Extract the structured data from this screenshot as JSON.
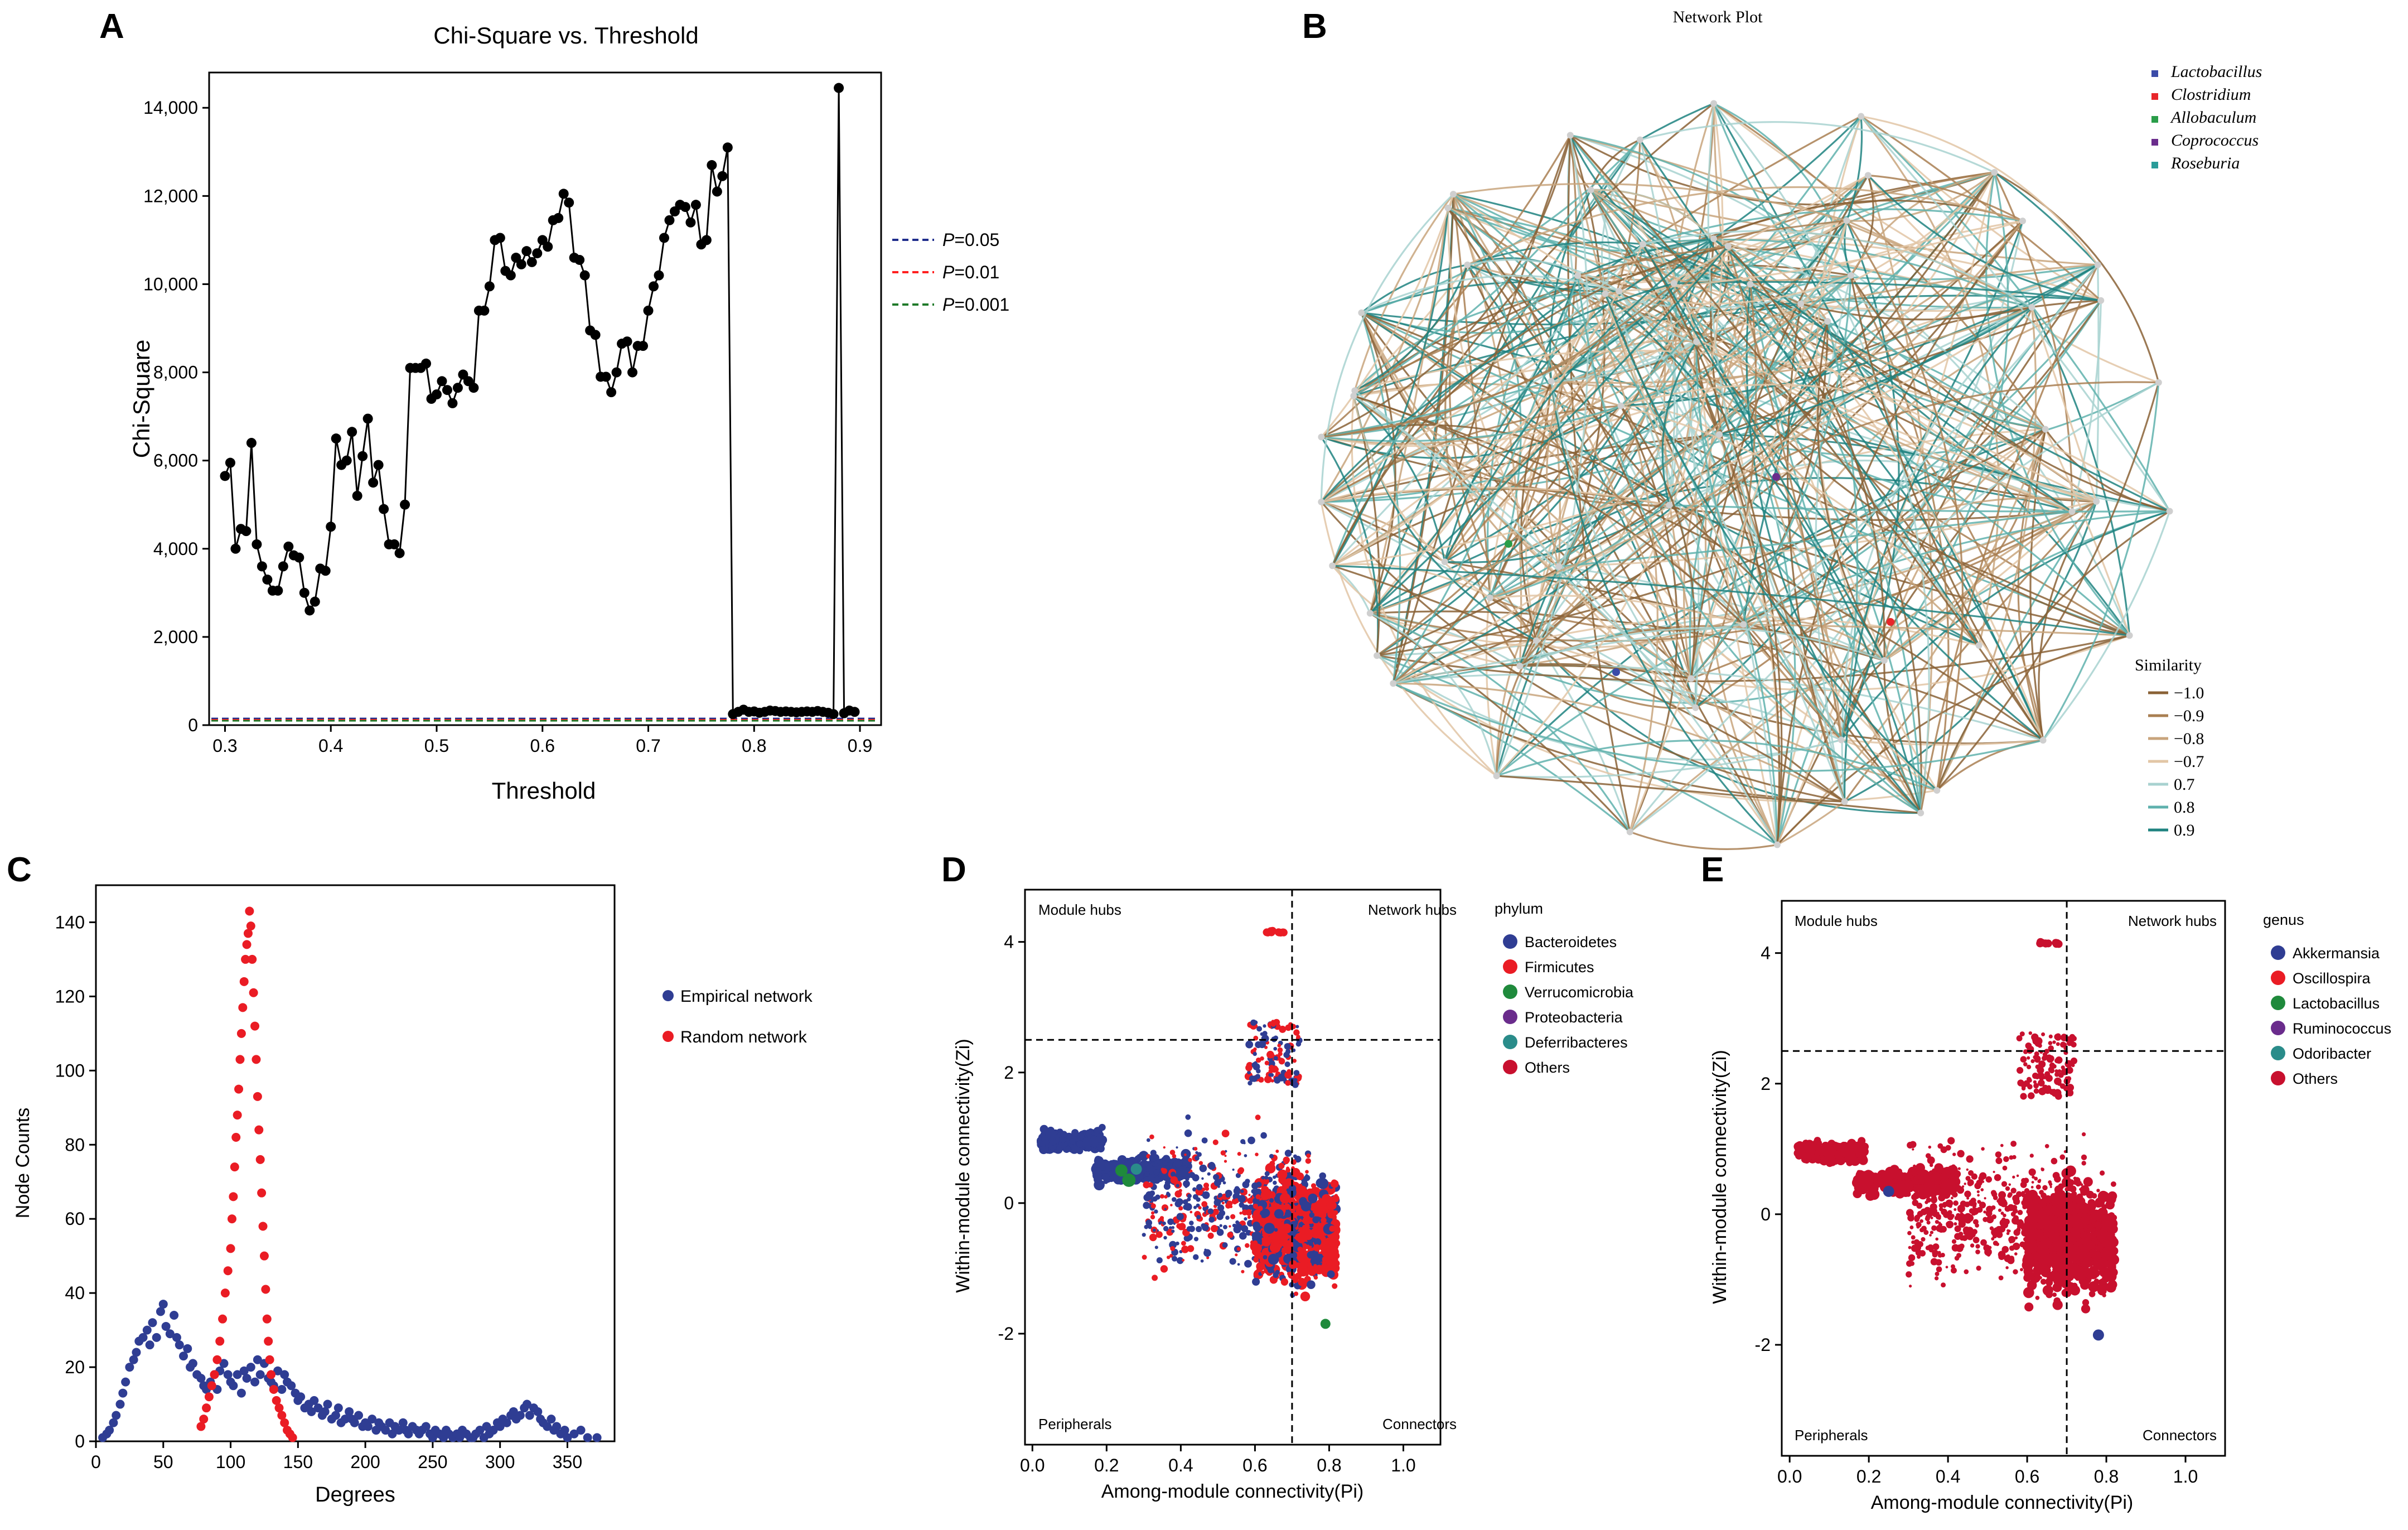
{
  "panels": [
    {
      "letter": "A"
    },
    {
      "letter": "B"
    },
    {
      "letter": "C"
    },
    {
      "letter": "D"
    },
    {
      "letter": "E"
    }
  ],
  "chart_data": [
    {
      "id": "A",
      "type": "line",
      "title": "Chi-Square vs. Threshold",
      "xlabel": "Threshold",
      "ylabel": "Chi-Square",
      "xlim": [
        0.285,
        0.92
      ],
      "ylim": [
        0,
        14800
      ],
      "xticks": [
        0.3,
        0.4,
        0.5,
        0.6,
        0.7,
        0.8,
        0.9
      ],
      "xtick_labels": [
        "0.3",
        "0.4",
        "0.5",
        "0.6",
        "0.7",
        "0.8",
        "0.9"
      ],
      "yticks": [
        0,
        2000,
        4000,
        6000,
        8000,
        10000,
        12000,
        14000
      ],
      "ytick_labels": [
        "0",
        "2,000",
        "4,000",
        "6,000",
        "8,000",
        "10,000",
        "12,000",
        "14,000"
      ],
      "series": [
        {
          "name": "Chi-Square",
          "color": "#000000",
          "x": [
            0.3,
            0.305,
            0.31,
            0.315,
            0.32,
            0.325,
            0.33,
            0.335,
            0.34,
            0.345,
            0.35,
            0.355,
            0.36,
            0.365,
            0.37,
            0.375,
            0.38,
            0.385,
            0.39,
            0.395,
            0.4,
            0.405,
            0.41,
            0.415,
            0.42,
            0.425,
            0.43,
            0.435,
            0.44,
            0.445,
            0.45,
            0.455,
            0.46,
            0.465,
            0.47,
            0.475,
            0.48,
            0.485,
            0.49,
            0.495,
            0.5,
            0.505,
            0.51,
            0.515,
            0.52,
            0.525,
            0.53,
            0.535,
            0.54,
            0.545,
            0.55,
            0.555,
            0.56,
            0.565,
            0.57,
            0.575,
            0.58,
            0.585,
            0.59,
            0.595,
            0.6,
            0.605,
            0.61,
            0.615,
            0.62,
            0.625,
            0.63,
            0.635,
            0.64,
            0.645,
            0.65,
            0.655,
            0.66,
            0.665,
            0.67,
            0.675,
            0.68,
            0.685,
            0.69,
            0.695,
            0.7,
            0.705,
            0.71,
            0.715,
            0.72,
            0.725,
            0.73,
            0.735,
            0.74,
            0.745,
            0.75,
            0.755,
            0.76,
            0.765,
            0.77,
            0.775,
            0.78,
            0.785,
            0.79,
            0.795,
            0.8,
            0.805,
            0.81,
            0.815,
            0.82,
            0.825,
            0.83,
            0.835,
            0.84,
            0.845,
            0.85,
            0.855,
            0.86,
            0.865,
            0.87,
            0.875,
            0.88,
            0.885,
            0.89,
            0.895
          ],
          "y": [
            5650,
            5950,
            4000,
            4450,
            4400,
            6400,
            4100,
            3600,
            3300,
            3050,
            3050,
            3600,
            4050,
            3850,
            3800,
            3000,
            2600,
            2800,
            3550,
            3500,
            4500,
            6500,
            5900,
            6000,
            6650,
            5200,
            6100,
            6950,
            5500,
            5900,
            4900,
            4100,
            4100,
            3900,
            5000,
            8100,
            8100,
            8100,
            8200,
            7400,
            7500,
            7800,
            7600,
            7300,
            7650,
            7950,
            7800,
            7650,
            9400,
            9400,
            9950,
            11000,
            11050,
            10300,
            10200,
            10600,
            10450,
            10750,
            10500,
            10700,
            11000,
            10850,
            11450,
            11500,
            12050,
            11850,
            10600,
            10550,
            10200,
            8950,
            8850,
            7900,
            7900,
            7550,
            8000,
            8650,
            8700,
            8000,
            8600,
            8600,
            9400,
            9950,
            10200,
            11050,
            11450,
            11650,
            11800,
            11750,
            11400,
            11800,
            10900,
            11000,
            12700,
            12100,
            12450,
            13100,
            250,
            300,
            350,
            300,
            310,
            280,
            300,
            330,
            320,
            300,
            310,
            300,
            290,
            300,
            310,
            300,
            320,
            300,
            280,
            250,
            14450,
            270,
            330,
            300
          ]
        }
      ],
      "legend": [
        {
          "label_italic": "P",
          "label_rest": "=0.05",
          "color": "#1f2d8c"
        },
        {
          "label_italic": "P",
          "label_rest": "=0.01",
          "color": "#ff2020"
        },
        {
          "label_italic": "P",
          "label_rest": "=0.001",
          "color": "#1f7a2a"
        }
      ],
      "reference_lines": [
        {
          "y": 150,
          "color": "#1f2d8c"
        },
        {
          "y": 120,
          "color": "#ff2020"
        },
        {
          "y": 100,
          "color": "#1f7a2a"
        }
      ]
    },
    {
      "id": "B",
      "type": "network",
      "title": "Network Plot",
      "legend_genus": [
        {
          "label": "Lactobacillus",
          "color": "#3b4ba8"
        },
        {
          "label": "Clostridium",
          "color": "#e8262b"
        },
        {
          "label": "Allobaculum",
          "color": "#2a9d49"
        },
        {
          "label": "Coprococcus",
          "color": "#6a2c8c"
        },
        {
          "label": "Roseburia",
          "color": "#2a9c99"
        }
      ],
      "similarity_title": "Similarity",
      "similarity": [
        {
          "label": "−1.0",
          "color": "#8a6236"
        },
        {
          "label": "−0.9",
          "color": "#a97f52"
        },
        {
          "label": "−0.8",
          "color": "#c8a47c"
        },
        {
          "label": "−0.7",
          "color": "#e2c6a6"
        },
        {
          "label": "0.7",
          "color": "#a8d2d0"
        },
        {
          "label": "0.8",
          "color": "#5fb1ad"
        },
        {
          "label": "0.9",
          "color": "#1f8380"
        }
      ],
      "nodes_highlight": [
        {
          "genus": "Coprococcus",
          "color": "#6a2c8c"
        },
        {
          "genus": "Allobaculum",
          "color": "#2a9d49"
        },
        {
          "genus": "Clostridium",
          "color": "#e8262b"
        },
        {
          "genus": "Lactobacillus",
          "color": "#3b4ba8"
        }
      ]
    },
    {
      "id": "C",
      "type": "scatter",
      "xlabel": "Degrees",
      "ylabel": "Node Counts",
      "xlim": [
        0,
        385
      ],
      "ylim": [
        0,
        150
      ],
      "xticks": [
        0,
        50,
        100,
        150,
        200,
        250,
        300,
        350
      ],
      "xtick_labels": [
        "0",
        "50",
        "100",
        "150",
        "200",
        "250",
        "300",
        "350"
      ],
      "yticks": [
        0,
        20,
        40,
        60,
        80,
        100,
        120,
        140
      ],
      "ytick_labels": [
        "0",
        "20",
        "40",
        "60",
        "80",
        "100",
        "120",
        "140"
      ],
      "series": [
        {
          "name": "Empirical network",
          "color": "#2f3d93",
          "x": [
            5,
            8,
            10,
            13,
            15,
            18,
            20,
            22,
            25,
            28,
            30,
            32,
            35,
            38,
            40,
            42,
            45,
            48,
            50,
            52,
            55,
            58,
            60,
            62,
            65,
            68,
            70,
            72,
            75,
            78,
            80,
            82,
            85,
            88,
            90,
            92,
            95,
            98,
            100,
            102,
            105,
            108,
            110,
            112,
            115,
            118,
            120,
            122,
            125,
            128,
            130,
            132,
            135,
            138,
            140,
            142,
            145,
            148,
            150,
            152,
            155,
            158,
            160,
            162,
            165,
            168,
            170,
            172,
            175,
            178,
            180,
            182,
            185,
            188,
            190,
            192,
            195,
            198,
            200,
            202,
            205,
            208,
            210,
            212,
            215,
            218,
            220,
            222,
            225,
            228,
            230,
            232,
            235,
            238,
            240,
            242,
            245,
            248,
            250,
            252,
            255,
            258,
            260,
            262,
            265,
            268,
            270,
            272,
            275,
            278,
            280,
            282,
            285,
            288,
            290,
            292,
            295,
            298,
            300,
            302,
            305,
            308,
            310,
            312,
            315,
            318,
            320,
            322,
            325,
            328,
            330,
            332,
            335,
            338,
            340,
            342,
            345,
            348,
            350,
            355,
            360,
            365,
            372
          ],
          "y": [
            1,
            2,
            3,
            5,
            7,
            10,
            13,
            16,
            20,
            22,
            24,
            27,
            28,
            30,
            26,
            32,
            28,
            35,
            37,
            31,
            29,
            34,
            28,
            26,
            23,
            25,
            20,
            21,
            18,
            17,
            15,
            14,
            16,
            18,
            14,
            19,
            21,
            18,
            16,
            15,
            18,
            13,
            19,
            17,
            20,
            16,
            22,
            18,
            21,
            17,
            16,
            15,
            19,
            14,
            18,
            16,
            15,
            13,
            11,
            12,
            9,
            10,
            8,
            11,
            9,
            7,
            8,
            10,
            6,
            7,
            9,
            5,
            6,
            8,
            6,
            5,
            7,
            4,
            5,
            4,
            6,
            3,
            5,
            4,
            3,
            5,
            2,
            4,
            3,
            5,
            3,
            2,
            4,
            3,
            2,
            3,
            4,
            2,
            1,
            3,
            2,
            1,
            3,
            2,
            1,
            2,
            1,
            3,
            2,
            1,
            1,
            2,
            3,
            1,
            4,
            2,
            3,
            5,
            4,
            6,
            5,
            7,
            8,
            6,
            7,
            9,
            10,
            7,
            9,
            8,
            6,
            5,
            4,
            6,
            3,
            4,
            2,
            3,
            1,
            2,
            3,
            1,
            1
          ]
        },
        {
          "name": "Random network",
          "color": "#ea1c24",
          "x": [
            78,
            80,
            82,
            84,
            86,
            88,
            90,
            92,
            94,
            96,
            98,
            100,
            101,
            102,
            103,
            104,
            105,
            106,
            107,
            108,
            109,
            110,
            111,
            112,
            113,
            114,
            115,
            116,
            117,
            118,
            119,
            120,
            121,
            122,
            123,
            124,
            125,
            126,
            127,
            128,
            129,
            130,
            132,
            134,
            136,
            138,
            140,
            142,
            144,
            146
          ],
          "y": [
            4,
            6,
            9,
            12,
            15,
            18,
            22,
            27,
            33,
            40,
            46,
            52,
            60,
            66,
            74,
            82,
            88,
            95,
            103,
            110,
            117,
            124,
            130,
            134,
            137,
            143,
            139,
            130,
            121,
            112,
            103,
            93,
            84,
            76,
            67,
            58,
            50,
            41,
            33,
            27,
            22,
            18,
            14,
            11,
            9,
            7,
            5,
            3,
            2,
            1
          ]
        }
      ]
    },
    {
      "id": "D",
      "type": "scatter",
      "xlabel": "Among-module connectivity(Pi)",
      "ylabel": "Within-module connectivity(Zi)",
      "xlim": [
        -0.02,
        1.1
      ],
      "ylim": [
        -3.7,
        4.8
      ],
      "xticks": [
        0.0,
        0.2,
        0.4,
        0.6,
        0.8,
        1.0
      ],
      "xtick_labels": [
        "0.0",
        "0.2",
        "0.4",
        "0.6",
        "0.8",
        "1.0"
      ],
      "yticks": [
        -2,
        0,
        2,
        4
      ],
      "ytick_labels": [
        "-2",
        "0",
        "2",
        "4"
      ],
      "threshold_x": 0.7,
      "threshold_y": 2.5,
      "quadrants": {
        "top_left": "Module hubs",
        "top_right": "Network hubs",
        "bottom_left": "Peripherals",
        "bottom_right": "Connectors"
      },
      "legend_title": "phylum",
      "legend": [
        {
          "label": "Bacteroidetes",
          "color": "#2f3d93"
        },
        {
          "label": "Firmicutes",
          "color": "#ea1c24"
        },
        {
          "label": "Verrucomicrobia",
          "color": "#1f8a3c"
        },
        {
          "label": "Proteobacteria",
          "color": "#6a2c8c"
        },
        {
          "label": "Deferribacteres",
          "color": "#2a8c8a"
        },
        {
          "label": "Others",
          "color": "#c8102e"
        }
      ]
    },
    {
      "id": "E",
      "type": "scatter",
      "xlabel": "Among-module connectivity(Pi)",
      "ylabel": "Within-module connectivity(Zi)",
      "xlim": [
        -0.02,
        1.1
      ],
      "ylim": [
        -3.7,
        4.8
      ],
      "xticks": [
        0.0,
        0.2,
        0.4,
        0.6,
        0.8,
        1.0
      ],
      "xtick_labels": [
        "0.0",
        "0.2",
        "0.4",
        "0.6",
        "0.8",
        "1.0"
      ],
      "yticks": [
        -2,
        0,
        2,
        4
      ],
      "ytick_labels": [
        "-2",
        "0",
        "2",
        "4"
      ],
      "threshold_x": 0.7,
      "threshold_y": 2.5,
      "quadrants": {
        "top_left": "Module hubs",
        "top_right": "Network hubs",
        "bottom_left": "Peripherals",
        "bottom_right": "Connectors"
      },
      "legend_title": "genus",
      "legend": [
        {
          "label": "Akkermansia",
          "color": "#2f3d93"
        },
        {
          "label": "Oscillospira",
          "color": "#ea1c24"
        },
        {
          "label": "Lactobacillus",
          "color": "#1f8a3c"
        },
        {
          "label": "Ruminococcus",
          "color": "#6a2c8c"
        },
        {
          "label": "Odoribacter",
          "color": "#2a8c8a"
        },
        {
          "label": "Others",
          "color": "#c8102e"
        }
      ]
    }
  ]
}
